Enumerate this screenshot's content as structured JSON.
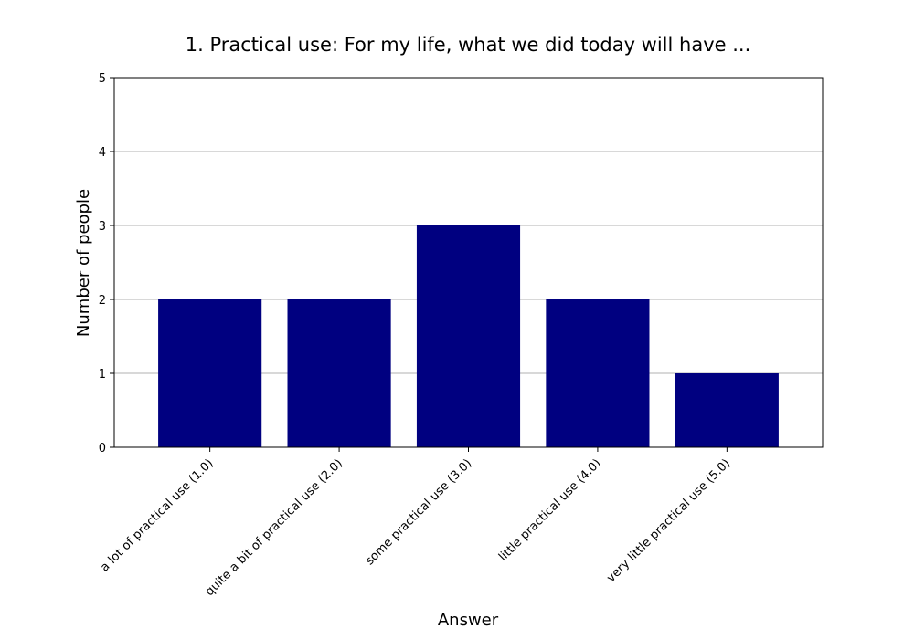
{
  "chart_data": {
    "type": "bar",
    "title": "1. Practical use: For my life, what we did today will have ...",
    "xlabel": "Answer",
    "ylabel": "Number of people",
    "categories": [
      "a lot of practical use (1.0)",
      "quite a bit of practical use (2.0)",
      "some practical use (3.0)",
      "little practical use (4.0)",
      "very little practical use (5.0)"
    ],
    "values": [
      2,
      2,
      3,
      2,
      1
    ],
    "ylim": [
      0,
      5
    ],
    "yticks": [
      "0",
      "1",
      "2",
      "3",
      "4",
      "5"
    ],
    "grid": "horizontal",
    "bar_color": "#000080"
  }
}
